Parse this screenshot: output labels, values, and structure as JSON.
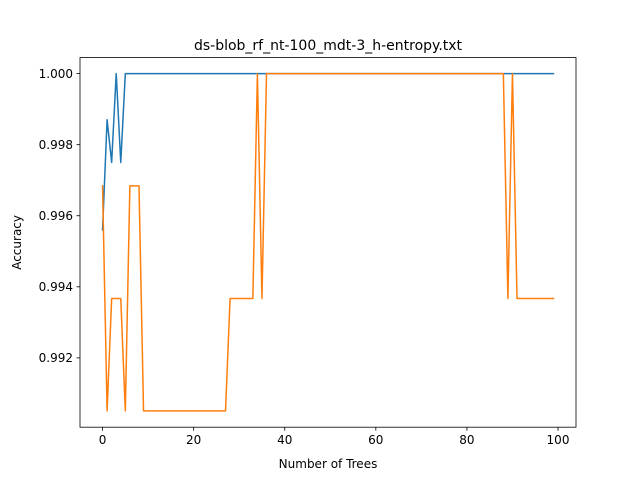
{
  "chart_data": {
    "type": "line",
    "title": "ds-blob_rf_nt-100_mdt-3_h-entropy.txt",
    "xlabel": "Number of Trees",
    "ylabel": "Accuracy",
    "xlim": [
      -4.95,
      103.95
    ],
    "ylim": [
      0.99005,
      1.00045
    ],
    "xticks": [
      0,
      20,
      40,
      60,
      80,
      100
    ],
    "yticks": [
      0.992,
      0.994,
      0.996,
      0.998,
      1.0
    ],
    "xtick_labels": [
      "0",
      "20",
      "40",
      "60",
      "80",
      "100"
    ],
    "ytick_labels": [
      "0.992",
      "0.994",
      "0.996",
      "0.998",
      "1.000"
    ],
    "grid": false,
    "legend": "none",
    "series": [
      {
        "color": "#1f77b4",
        "x": [
          0,
          1,
          2,
          3,
          4,
          5,
          99
        ],
        "y": [
          0.9956,
          0.9987,
          0.9975,
          1.0,
          0.9975,
          1.0,
          1.0
        ]
      },
      {
        "color": "#ff7f0e",
        "x": [
          0,
          1,
          2,
          3,
          4,
          5,
          6,
          7,
          8,
          9,
          27,
          28,
          33,
          34,
          35,
          36,
          88,
          89,
          90,
          91,
          99
        ],
        "y": [
          0.99684,
          0.99051,
          0.99367,
          0.99367,
          0.99367,
          0.99051,
          0.99684,
          0.99684,
          0.99684,
          0.99051,
          0.99051,
          0.99367,
          0.99367,
          1.0,
          0.99367,
          1.0,
          1.0,
          0.99367,
          1.0,
          0.99367,
          0.99367
        ]
      }
    ]
  }
}
